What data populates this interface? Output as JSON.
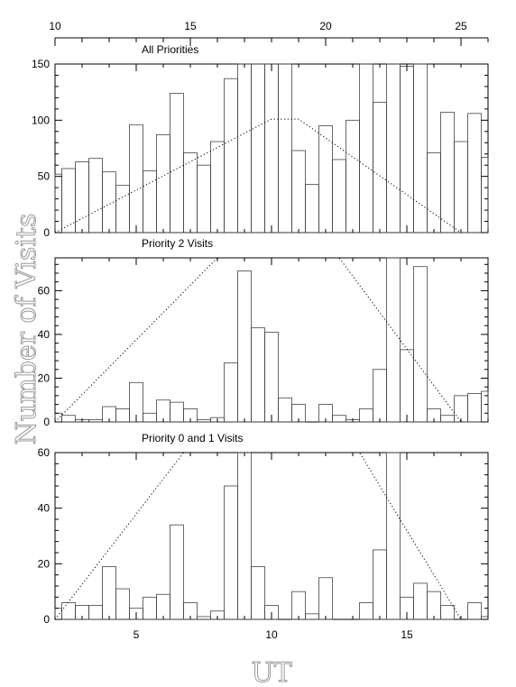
{
  "chart_data": [
    {
      "type": "histogram",
      "title": "All Priorities",
      "xlabel": "UT",
      "ylabel": "Number of Visits",
      "xlim": [
        2,
        18
      ],
      "ylim": [
        0,
        150
      ],
      "yticks": [
        0,
        50,
        100,
        150
      ],
      "top_axis_ticks": [
        10,
        15,
        20,
        25
      ],
      "bin_edges": [
        2,
        2.25,
        2.75,
        3.25,
        3.75,
        4.25,
        4.75,
        5.25,
        5.75,
        6.25,
        6.75,
        7.25,
        7.75,
        8.25,
        8.75,
        9.25,
        9.75,
        10.25,
        10.75,
        11.25,
        11.75,
        12.25,
        12.75,
        13.25,
        13.75,
        14.25,
        14.75,
        15.25,
        15.75,
        16.25,
        16.75,
        17.25,
        17.75,
        18
      ],
      "values": [
        52,
        57,
        63,
        66,
        54,
        42,
        96,
        55,
        87,
        124,
        71,
        60,
        81,
        137,
        152,
        152,
        150,
        152,
        73,
        43,
        95,
        65,
        100,
        152,
        116,
        152,
        148,
        152,
        71,
        107,
        81,
        106,
        67
      ],
      "reference_curve_x": [
        2,
        10,
        11,
        17
      ],
      "reference_curve_y": [
        0,
        101,
        101,
        0
      ]
    },
    {
      "type": "histogram",
      "title": "Priority 2 Visits",
      "xlim": [
        2,
        18
      ],
      "ylim": [
        0,
        75
      ],
      "yticks": [
        0,
        20,
        40,
        60
      ],
      "bin_edges": [
        2,
        2.25,
        2.75,
        3.25,
        3.75,
        4.25,
        4.75,
        5.25,
        5.75,
        6.25,
        6.75,
        7.25,
        7.75,
        8.25,
        8.75,
        9.25,
        9.75,
        10.25,
        10.75,
        11.25,
        11.75,
        12.25,
        12.75,
        13.25,
        13.75,
        14.25,
        14.75,
        15.25,
        15.75,
        16.25,
        16.75,
        17.25,
        17.75,
        18
      ],
      "values": [
        4,
        3,
        1,
        1,
        7,
        6,
        18,
        4,
        10,
        9,
        6,
        1,
        2,
        27,
        69,
        43,
        41,
        11,
        8,
        0,
        8,
        3,
        1,
        6,
        24,
        76,
        33,
        71,
        6,
        3,
        12,
        13,
        14
      ],
      "reference_curve_x": [
        2,
        8,
        12.5,
        17
      ],
      "reference_curve_y": [
        0,
        75,
        75,
        0
      ]
    },
    {
      "type": "histogram",
      "title": "Priority 0 and 1 Visits",
      "xlim": [
        2,
        18
      ],
      "ylim": [
        0,
        60
      ],
      "yticks": [
        0,
        20,
        40,
        60
      ],
      "bin_edges": [
        2,
        2.25,
        2.75,
        3.25,
        3.75,
        4.25,
        4.75,
        5.25,
        5.75,
        6.25,
        6.75,
        7.25,
        7.75,
        8.25,
        8.75,
        9.25,
        9.75,
        10.25,
        10.75,
        11.25,
        11.75,
        12.25,
        12.75,
        13.25,
        13.75,
        14.25,
        14.75,
        15.25,
        15.75,
        16.25,
        16.75,
        17.25,
        17.75,
        18
      ],
      "values": [
        4,
        6,
        5,
        5,
        19,
        11,
        4,
        8,
        9,
        34,
        6,
        1,
        3,
        48,
        60,
        19,
        5,
        0,
        10,
        2,
        15,
        0,
        0,
        6,
        25,
        60,
        8,
        13,
        10,
        5,
        0,
        6,
        1
      ],
      "reference_curve_x": [
        2,
        6.75,
        13.25,
        17
      ],
      "reference_curve_y": [
        0,
        60,
        60,
        0
      ],
      "xticks": [
        5,
        10,
        15
      ]
    }
  ]
}
